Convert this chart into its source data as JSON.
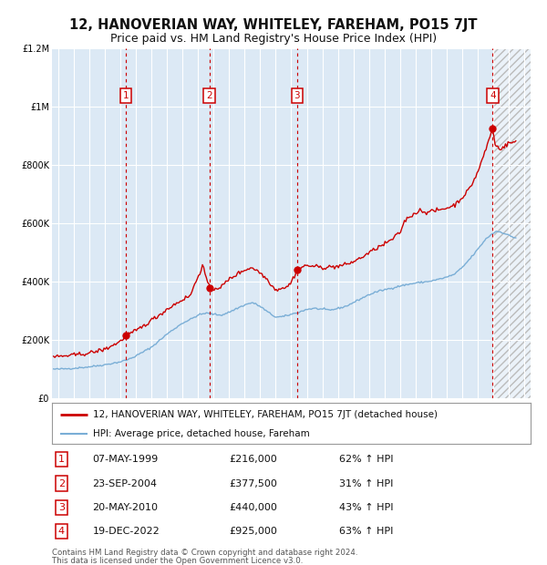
{
  "title": "12, HANOVERIAN WAY, WHITELEY, FAREHAM, PO15 7JT",
  "subtitle": "Price paid vs. HM Land Registry's House Price Index (HPI)",
  "legend_red": "12, HANOVERIAN WAY, WHITELEY, FAREHAM, PO15 7JT (detached house)",
  "legend_blue": "HPI: Average price, detached house, Fareham",
  "footer1": "Contains HM Land Registry data © Crown copyright and database right 2024.",
  "footer2": "This data is licensed under the Open Government Licence v3.0.",
  "sales": [
    {
      "num": 1,
      "date": "07-MAY-1999",
      "price": 216000,
      "price_str": "£216,000",
      "pct": "62%",
      "dir": "↑",
      "year": 1999.35
    },
    {
      "num": 2,
      "date": "23-SEP-2004",
      "price": 377500,
      "price_str": "£377,500",
      "pct": "31%",
      "dir": "↑",
      "year": 2004.72
    },
    {
      "num": 3,
      "date": "20-MAY-2010",
      "price": 440000,
      "price_str": "£440,000",
      "pct": "43%",
      "dir": "↑",
      "year": 2010.37
    },
    {
      "num": 4,
      "date": "19-DEC-2022",
      "price": 925000,
      "price_str": "£925,000",
      "pct": "63%",
      "dir": "↑",
      "year": 2022.96
    }
  ],
  "ylim": [
    0,
    1200000
  ],
  "xlim_start": 1994.6,
  "xlim_end": 2025.4,
  "hatch_start": 2023.0,
  "bg_color": "#dce9f5",
  "red_color": "#cc0000",
  "blue_color": "#7aaed6",
  "grid_color": "#ffffff",
  "vline_color": "#cc0000",
  "box_color": "#cc0000",
  "title_fontsize": 10.5,
  "subtitle_fontsize": 9,
  "tick_fontsize": 7,
  "ytick_labels": [
    "£0",
    "£200K",
    "£400K",
    "£600K",
    "£800K",
    "£1M",
    "£1.2M"
  ],
  "ytick_values": [
    0,
    200000,
    400000,
    600000,
    800000,
    1000000,
    1200000
  ],
  "hpi_keypoints": [
    [
      1995.0,
      100000
    ],
    [
      1996.0,
      103000
    ],
    [
      1997.0,
      108000
    ],
    [
      1998.0,
      115000
    ],
    [
      1999.0,
      125000
    ],
    [
      1999.5,
      133000
    ],
    [
      2000.0,
      145000
    ],
    [
      2001.0,
      175000
    ],
    [
      2002.0,
      220000
    ],
    [
      2003.0,
      258000
    ],
    [
      2003.5,
      270000
    ],
    [
      2004.0,
      285000
    ],
    [
      2004.5,
      292000
    ],
    [
      2005.0,
      288000
    ],
    [
      2005.5,
      285000
    ],
    [
      2006.0,
      295000
    ],
    [
      2006.5,
      308000
    ],
    [
      2007.0,
      320000
    ],
    [
      2007.5,
      328000
    ],
    [
      2008.0,
      315000
    ],
    [
      2008.5,
      295000
    ],
    [
      2009.0,
      278000
    ],
    [
      2009.5,
      280000
    ],
    [
      2010.0,
      288000
    ],
    [
      2010.5,
      295000
    ],
    [
      2011.0,
      305000
    ],
    [
      2011.5,
      308000
    ],
    [
      2012.0,
      305000
    ],
    [
      2012.5,
      302000
    ],
    [
      2013.0,
      308000
    ],
    [
      2013.5,
      315000
    ],
    [
      2014.0,
      328000
    ],
    [
      2014.5,
      342000
    ],
    [
      2015.0,
      355000
    ],
    [
      2015.5,
      365000
    ],
    [
      2016.0,
      372000
    ],
    [
      2016.5,
      378000
    ],
    [
      2017.0,
      385000
    ],
    [
      2017.5,
      390000
    ],
    [
      2018.0,
      395000
    ],
    [
      2018.5,
      398000
    ],
    [
      2019.0,
      402000
    ],
    [
      2019.5,
      408000
    ],
    [
      2020.0,
      415000
    ],
    [
      2020.5,
      425000
    ],
    [
      2021.0,
      448000
    ],
    [
      2021.5,
      478000
    ],
    [
      2022.0,
      510000
    ],
    [
      2022.5,
      545000
    ],
    [
      2022.96,
      565000
    ],
    [
      2023.2,
      572000
    ],
    [
      2023.5,
      570000
    ],
    [
      2024.0,
      558000
    ],
    [
      2024.4,
      550000
    ]
  ],
  "red_keypoints": [
    [
      1995.0,
      143000
    ],
    [
      1996.0,
      148000
    ],
    [
      1997.0,
      155000
    ],
    [
      1998.0,
      168000
    ],
    [
      1999.0,
      195000
    ],
    [
      1999.35,
      216000
    ],
    [
      1999.8,
      225000
    ],
    [
      2000.5,
      248000
    ],
    [
      2001.0,
      268000
    ],
    [
      2001.5,
      285000
    ],
    [
      2002.0,
      305000
    ],
    [
      2002.5,
      322000
    ],
    [
      2003.0,
      338000
    ],
    [
      2003.5,
      352000
    ],
    [
      2004.0,
      418000
    ],
    [
      2004.3,
      455000
    ],
    [
      2004.72,
      377500
    ],
    [
      2005.0,
      375000
    ],
    [
      2005.5,
      382000
    ],
    [
      2006.0,
      408000
    ],
    [
      2006.5,
      425000
    ],
    [
      2007.0,
      440000
    ],
    [
      2007.5,
      448000
    ],
    [
      2008.0,
      430000
    ],
    [
      2008.5,
      405000
    ],
    [
      2009.0,
      370000
    ],
    [
      2009.3,
      378000
    ],
    [
      2009.7,
      380000
    ],
    [
      2010.0,
      398000
    ],
    [
      2010.37,
      440000
    ],
    [
      2010.7,
      450000
    ],
    [
      2011.0,
      455000
    ],
    [
      2011.5,
      452000
    ],
    [
      2012.0,
      448000
    ],
    [
      2012.5,
      450000
    ],
    [
      2013.0,
      452000
    ],
    [
      2013.5,
      458000
    ],
    [
      2014.0,
      468000
    ],
    [
      2014.5,
      482000
    ],
    [
      2015.0,
      498000
    ],
    [
      2015.5,
      515000
    ],
    [
      2016.0,
      528000
    ],
    [
      2016.5,
      545000
    ],
    [
      2017.0,
      568000
    ],
    [
      2017.3,
      608000
    ],
    [
      2017.6,
      622000
    ],
    [
      2018.0,
      635000
    ],
    [
      2018.3,
      645000
    ],
    [
      2018.6,
      638000
    ],
    [
      2019.0,
      640000
    ],
    [
      2019.5,
      645000
    ],
    [
      2020.0,
      652000
    ],
    [
      2020.5,
      662000
    ],
    [
      2021.0,
      688000
    ],
    [
      2021.5,
      720000
    ],
    [
      2022.0,
      775000
    ],
    [
      2022.5,
      850000
    ],
    [
      2022.96,
      925000
    ],
    [
      2023.1,
      870000
    ],
    [
      2023.4,
      855000
    ],
    [
      2023.7,
      862000
    ],
    [
      2024.0,
      875000
    ],
    [
      2024.4,
      878000
    ]
  ]
}
